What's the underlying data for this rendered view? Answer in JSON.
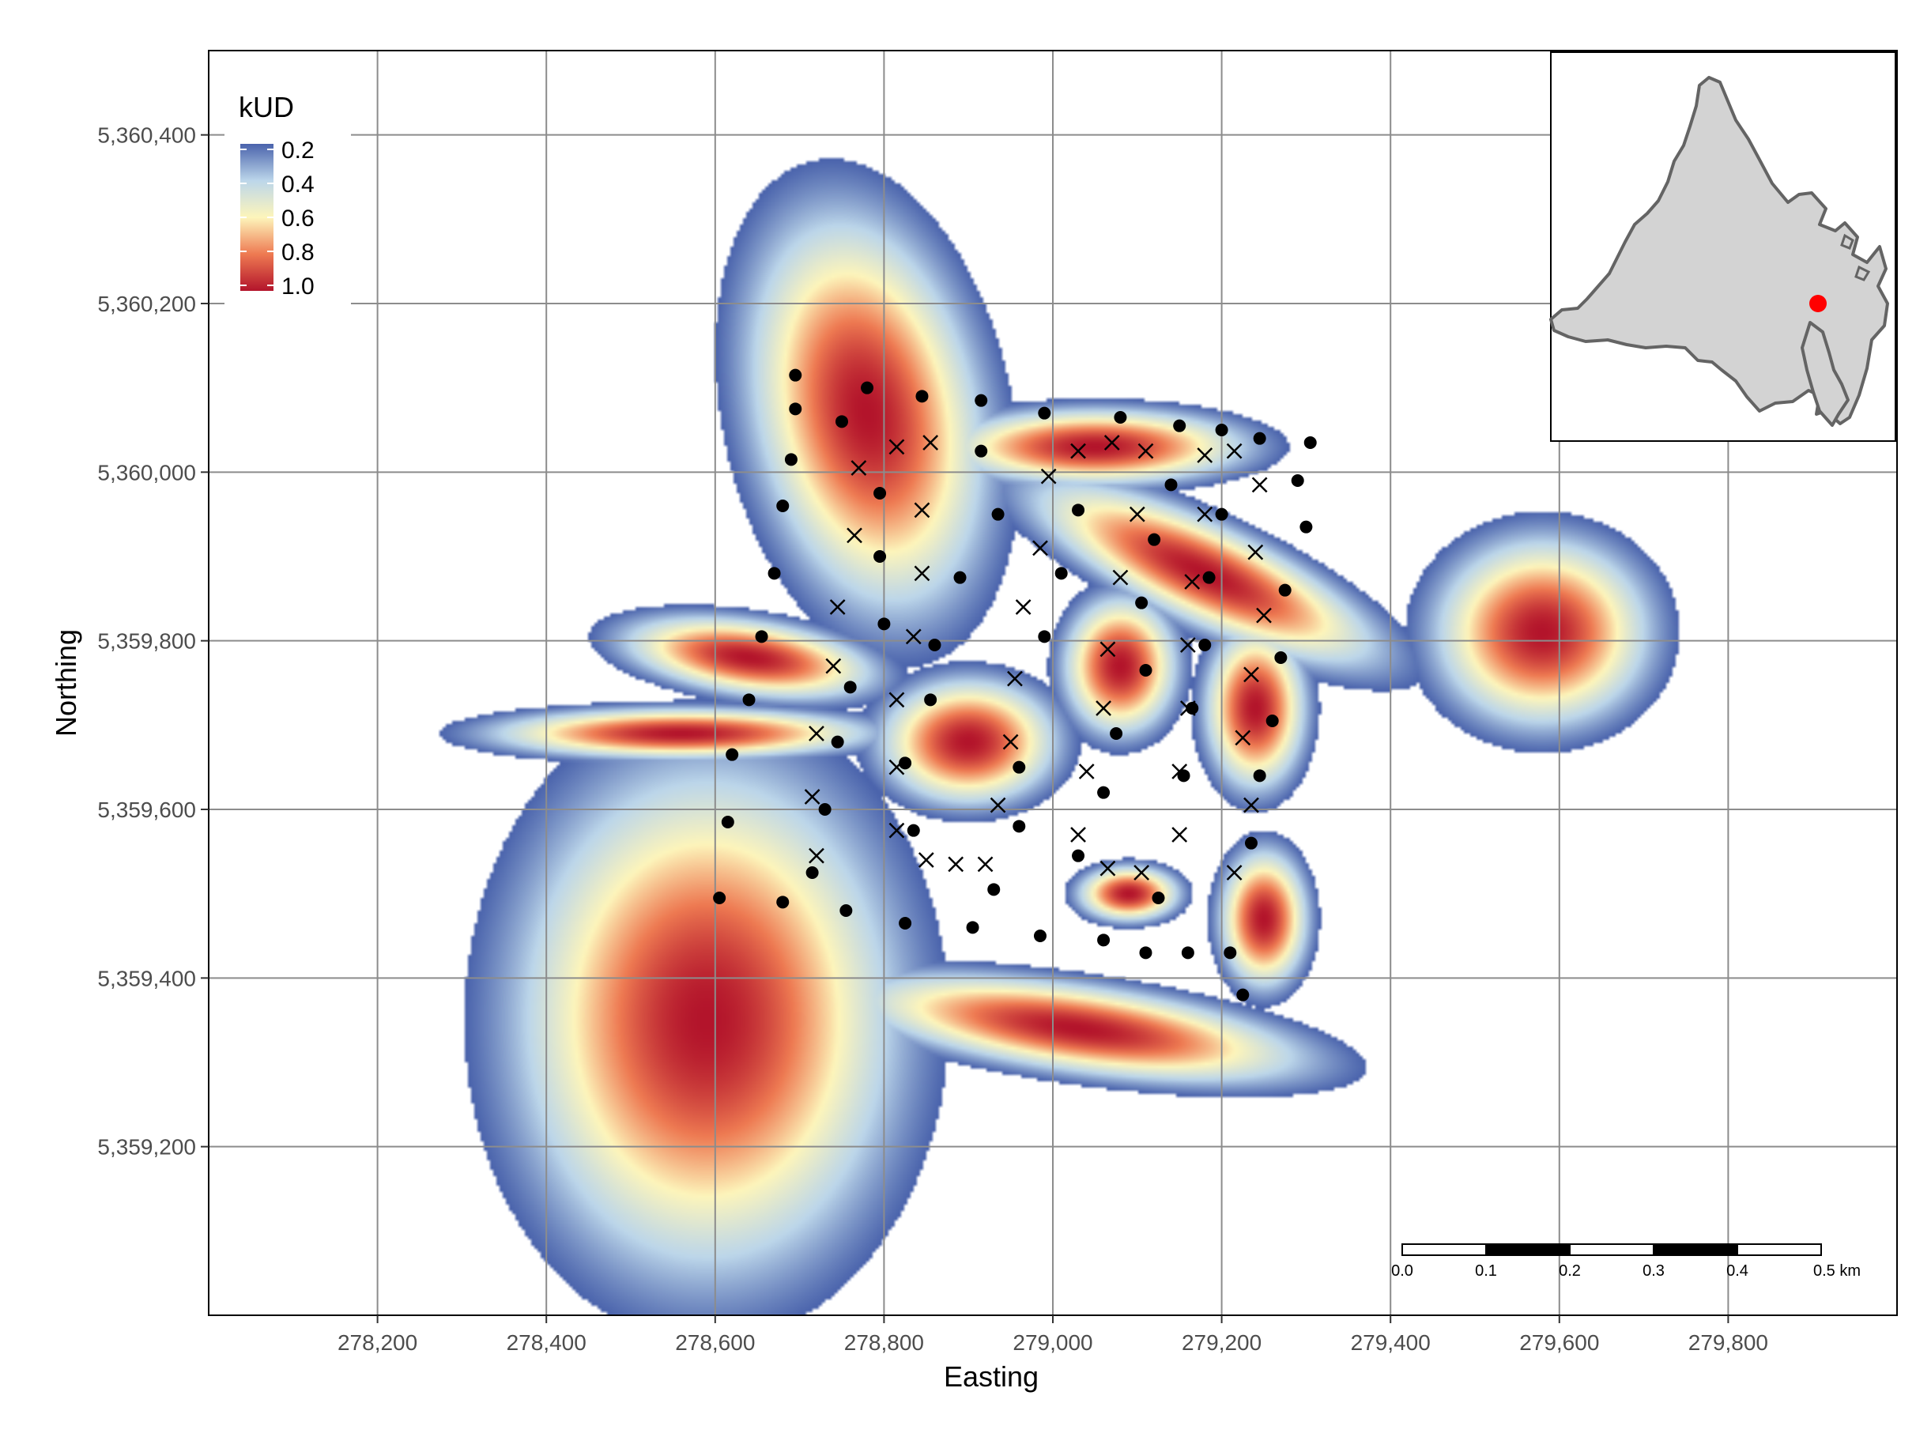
{
  "colors": {
    "low": "#4a63ac",
    "mid_low": "#bcd6ea",
    "mid": "#fdf5bb",
    "mid_high": "#ee7a52",
    "high": "#b3142b",
    "grid": "#8c8c8c",
    "inset_land": "#d3d3d3",
    "inset_outline": "#646464",
    "inset_marker": "#ff0000"
  },
  "chart_data": {
    "type": "heatmap",
    "xlabel": "Easting",
    "ylabel": "Northing",
    "xlim": [
      278000,
      280000
    ],
    "ylim": [
      5359000,
      5360500
    ],
    "x_ticks": [
      278200,
      278400,
      278600,
      278800,
      279000,
      279200,
      279400,
      279600,
      279800
    ],
    "y_ticks": [
      5359200,
      5359400,
      5359600,
      5359800,
      5360000,
      5360200,
      5360400
    ],
    "x_tick_labels": [
      "278,200",
      "278,400",
      "278,600",
      "278,800",
      "279,000",
      "279,200",
      "279,400",
      "279,600",
      "279,800"
    ],
    "y_tick_labels": [
      "5,359,200",
      "5,359,400",
      "5,359,600",
      "5,359,800",
      "5,360,000",
      "5,360,200",
      "5,360,400"
    ],
    "grid": true,
    "legend": {
      "title": "kUD",
      "placement": "top-left",
      "labels": [
        "0.2",
        "0.4",
        "0.6",
        "0.8",
        "1.0"
      ],
      "values": [
        0.2,
        0.4,
        0.6,
        0.8,
        1.0
      ]
    },
    "kernels": [
      {
        "x": 278590,
        "y": 5359350,
        "sx": 150,
        "sy": 200,
        "angle": 0
      },
      {
        "x": 278780,
        "y": 5360070,
        "sx": 90,
        "sy": 160,
        "angle": 12
      },
      {
        "x": 278560,
        "y": 5359690,
        "sx": 150,
        "sy": 20,
        "angle": 0
      },
      {
        "x": 278640,
        "y": 5359780,
        "sx": 100,
        "sy": 30,
        "angle": -8
      },
      {
        "x": 278900,
        "y": 5359680,
        "sx": 70,
        "sy": 50,
        "angle": 0
      },
      {
        "x": 279080,
        "y": 5359770,
        "sx": 45,
        "sy": 55,
        "angle": 0
      },
      {
        "x": 279240,
        "y": 5359720,
        "sx": 40,
        "sy": 65,
        "angle": 0
      },
      {
        "x": 279250,
        "y": 5359470,
        "sx": 35,
        "sy": 55,
        "angle": 0
      },
      {
        "x": 279090,
        "y": 5359500,
        "sx": 40,
        "sy": 22,
        "angle": 0
      },
      {
        "x": 279580,
        "y": 5359810,
        "sx": 85,
        "sy": 75,
        "angle": 0
      },
      {
        "x": 279180,
        "y": 5359880,
        "sx": 150,
        "sy": 40,
        "angle": -25
      },
      {
        "x": 279050,
        "y": 5360030,
        "sx": 120,
        "sy": 30,
        "angle": 0
      },
      {
        "x": 279030,
        "y": 5359340,
        "sx": 180,
        "sy": 35,
        "angle": -8
      }
    ],
    "points_dot": [
      [
        278695,
        5360115
      ],
      [
        278780,
        5360100
      ],
      [
        278750,
        5360060
      ],
      [
        278695,
        5360075
      ],
      [
        278690,
        5360015
      ],
      [
        278845,
        5360090
      ],
      [
        278915,
        5360085
      ],
      [
        278915,
        5360025
      ],
      [
        278990,
        5360070
      ],
      [
        279080,
        5360065
      ],
      [
        279150,
        5360055
      ],
      [
        279200,
        5360050
      ],
      [
        279245,
        5360040
      ],
      [
        279305,
        5360035
      ],
      [
        279290,
        5359990
      ],
      [
        279300,
        5359935
      ],
      [
        279275,
        5359860
      ],
      [
        279260,
        5359705
      ],
      [
        279270,
        5359780
      ],
      [
        279245,
        5359640
      ],
      [
        279235,
        5359560
      ],
      [
        279225,
        5359380
      ],
      [
        279210,
        5359430
      ],
      [
        279160,
        5359430
      ],
      [
        279110,
        5359430
      ],
      [
        279060,
        5359445
      ],
      [
        278985,
        5359450
      ],
      [
        278930,
        5359505
      ],
      [
        278905,
        5359460
      ],
      [
        278825,
        5359465
      ],
      [
        278755,
        5359480
      ],
      [
        278680,
        5359490
      ],
      [
        278605,
        5359495
      ],
      [
        278615,
        5359585
      ],
      [
        278715,
        5359525
      ],
      [
        278730,
        5359600
      ],
      [
        278745,
        5359680
      ],
      [
        278620,
        5359665
      ],
      [
        278640,
        5359730
      ],
      [
        278655,
        5359805
      ],
      [
        278670,
        5359880
      ],
      [
        278680,
        5359960
      ],
      [
        278795,
        5359975
      ],
      [
        278795,
        5359900
      ],
      [
        278860,
        5359795
      ],
      [
        278800,
        5359820
      ],
      [
        278760,
        5359745
      ],
      [
        278855,
        5359730
      ],
      [
        278825,
        5359655
      ],
      [
        278835,
        5359575
      ],
      [
        278935,
        5359950
      ],
      [
        278890,
        5359875
      ],
      [
        278990,
        5359805
      ],
      [
        279010,
        5359880
      ],
      [
        279030,
        5359955
      ],
      [
        279120,
        5359920
      ],
      [
        279140,
        5359985
      ],
      [
        279200,
        5359950
      ],
      [
        279185,
        5359875
      ],
      [
        279105,
        5359845
      ],
      [
        279110,
        5359765
      ],
      [
        279075,
        5359690
      ],
      [
        279165,
        5359720
      ],
      [
        279180,
        5359795
      ],
      [
        279155,
        5359640
      ],
      [
        279060,
        5359620
      ],
      [
        278960,
        5359650
      ],
      [
        278960,
        5359580
      ],
      [
        279030,
        5359545
      ],
      [
        279125,
        5359495
      ]
    ],
    "points_cross": [
      [
        278770,
        5360005
      ],
      [
        278815,
        5360030
      ],
      [
        278855,
        5360035
      ],
      [
        278845,
        5359955
      ],
      [
        278765,
        5359925
      ],
      [
        278845,
        5359880
      ],
      [
        278745,
        5359840
      ],
      [
        278835,
        5359805
      ],
      [
        278740,
        5359770
      ],
      [
        278815,
        5359730
      ],
      [
        278720,
        5359690
      ],
      [
        278815,
        5359650
      ],
      [
        278715,
        5359615
      ],
      [
        278815,
        5359575
      ],
      [
        278720,
        5359545
      ],
      [
        278850,
        5359540
      ],
      [
        278885,
        5359535
      ],
      [
        278920,
        5359535
      ],
      [
        278935,
        5359605
      ],
      [
        278950,
        5359680
      ],
      [
        278955,
        5359755
      ],
      [
        278965,
        5359840
      ],
      [
        278985,
        5359910
      ],
      [
        278995,
        5359995
      ],
      [
        279030,
        5360025
      ],
      [
        279070,
        5360035
      ],
      [
        279110,
        5360025
      ],
      [
        279180,
        5360020
      ],
      [
        279215,
        5360025
      ],
      [
        279245,
        5359985
      ],
      [
        279240,
        5359905
      ],
      [
        279165,
        5359870
      ],
      [
        279180,
        5359950
      ],
      [
        279100,
        5359950
      ],
      [
        279080,
        5359875
      ],
      [
        279065,
        5359790
      ],
      [
        279060,
        5359720
      ],
      [
        279160,
        5359795
      ],
      [
        279160,
        5359720
      ],
      [
        279150,
        5359645
      ],
      [
        279040,
        5359645
      ],
      [
        279030,
        5359570
      ],
      [
        279065,
        5359530
      ],
      [
        279105,
        5359525
      ],
      [
        279150,
        5359570
      ],
      [
        279235,
        5359605
      ],
      [
        279225,
        5359685
      ],
      [
        279235,
        5359760
      ],
      [
        279250,
        5359830
      ],
      [
        279215,
        5359525
      ]
    ],
    "scale_bar": {
      "labels": [
        "0.0",
        "0.1",
        "0.2",
        "0.3",
        "0.4",
        "0.5 km"
      ],
      "segments_km": [
        0.0,
        0.1,
        0.2,
        0.3,
        0.4,
        0.5
      ],
      "placement": "bottom-right"
    },
    "inset": {
      "placement": "top-right",
      "marker": "study-site"
    }
  }
}
